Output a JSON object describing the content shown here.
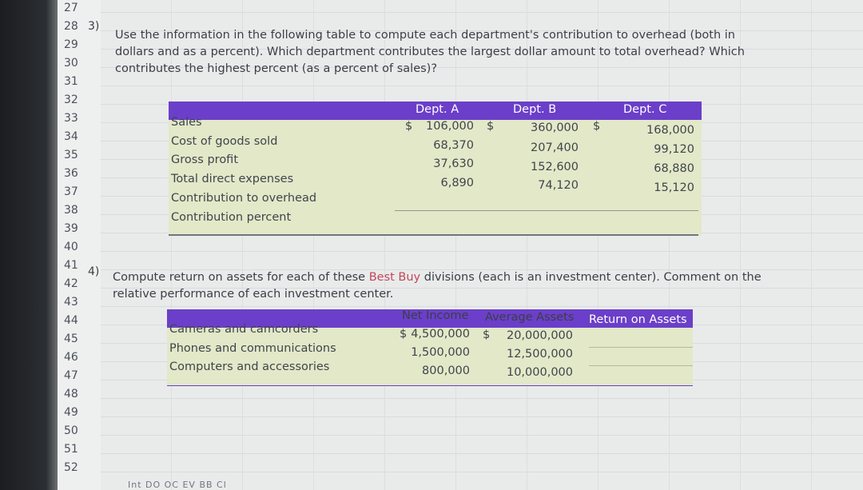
{
  "row_numbers": [
    "27",
    "28",
    "29",
    "30",
    "31",
    "32",
    "33",
    "34",
    "35",
    "36",
    "37",
    "38",
    "39",
    "40",
    "41",
    "42",
    "43",
    "44",
    "45",
    "46",
    "47",
    "48",
    "49",
    "50",
    "51",
    "52"
  ],
  "q3": {
    "number": "3)",
    "lines": [
      "Use the information in the following table to compute each department's contribution to overhead (both in",
      "dollars and as a percent). Which department contributes the largest dollar amount to total overhead? Which",
      "contributes the highest percent (as a percent of sales)?"
    ]
  },
  "table1": {
    "headers": [
      "Dept. A",
      "Dept. B",
      "Dept. C"
    ],
    "currency_symbol": "$",
    "rows": [
      {
        "label": "Sales",
        "a": "106,000",
        "b": "360,000",
        "c": "168,000"
      },
      {
        "label": "Cost of goods sold",
        "a": "68,370",
        "b": "207,400",
        "c": "99,120"
      },
      {
        "label": "Gross profit",
        "a": "37,630",
        "b": "152,600",
        "c": "68,880"
      },
      {
        "label": "Total direct expenses",
        "a": "6,890",
        "b": "74,120",
        "c": "15,120"
      },
      {
        "label": "Contribution to overhead",
        "a": "",
        "b": "",
        "c": ""
      },
      {
        "label": "Contribution percent",
        "a": "",
        "b": "",
        "c": ""
      }
    ]
  },
  "q4": {
    "number": "4)",
    "line1_before": "Compute return on assets for each of these ",
    "line1_link": "Best Buy",
    "line1_after": " divisions (each is an investment center). Comment on the",
    "line2": "relative performance of each investment center."
  },
  "table2": {
    "headers": [
      "Net Income",
      "Average Assets",
      "Return on Assets"
    ],
    "currency_symbol": "$",
    "rows": [
      {
        "label": "Cameras and camcorders",
        "net_income": "4,500,000",
        "avg_assets": "20,000,000",
        "roa": ""
      },
      {
        "label": "Phones and communications",
        "net_income": "1,500,000",
        "avg_assets": "12,500,000",
        "roa": ""
      },
      {
        "label": "Computers and accessories",
        "net_income": "800,000",
        "avg_assets": "10,000,000",
        "roa": ""
      }
    ]
  },
  "sheet_tabs": "Int  DO  OC  EV  BB  Cl"
}
